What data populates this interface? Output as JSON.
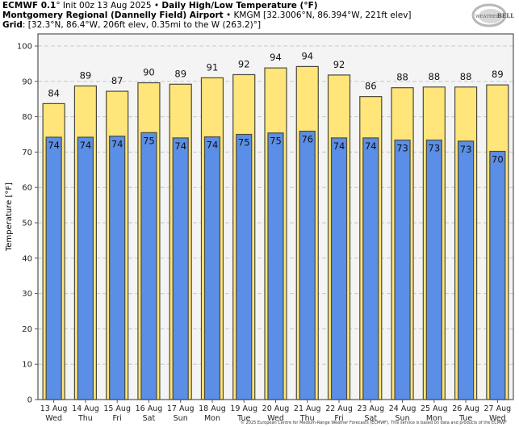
{
  "header": {
    "model": "ECMWF 0.1",
    "model_deg": "°",
    "init": " Init 00z 13 Aug 2025",
    "sep": " • ",
    "product": "Daily High/Low Temperature (°F)",
    "station": "Montgomery Regional (Dannelly Field) Airport",
    "station_info": "KMGM [32.3006°N, 86.394°W, 221ft elev]",
    "grid_label": "Grid",
    "grid_info": ": [32.3°N, 86.4°W, 206ft elev, 0.35mi to the W (263.2)°]"
  },
  "logo": {
    "text_left": "WEATHER",
    "text_right": "BELL",
    "icon": "weatherbell-logo-icon"
  },
  "footer": "© 2025 European Centre for Medium-Range Weather Forecasts (ECMWF). This service is based on data and products of the ECMWF",
  "colors": {
    "high": "#ffe57a",
    "low": "#5b8ee6",
    "outline": "#4a4a3a",
    "plot_bg": "#f4f4f4",
    "grid": "#c8c8c8"
  },
  "chart_data": {
    "type": "bar",
    "title": "Daily High/Low Temperature (°F)",
    "ylabel": "Temperature [°F]",
    "xlabel": "",
    "ylim": [
      0,
      105
    ],
    "yticks": [
      0,
      10,
      20,
      30,
      40,
      50,
      60,
      70,
      80,
      90,
      100
    ],
    "grid": true,
    "categories": [
      [
        "13 Aug",
        "Wed"
      ],
      [
        "14 Aug",
        "Thu"
      ],
      [
        "15 Aug",
        "Fri"
      ],
      [
        "16 Aug",
        "Sat"
      ],
      [
        "17 Aug",
        "Sun"
      ],
      [
        "18 Aug",
        "Mon"
      ],
      [
        "19 Aug",
        "Tue"
      ],
      [
        "20 Aug",
        "Wed"
      ],
      [
        "21 Aug",
        "Thu"
      ],
      [
        "22 Aug",
        "Fri"
      ],
      [
        "23 Aug",
        "Sat"
      ],
      [
        "24 Aug",
        "Sun"
      ],
      [
        "25 Aug",
        "Mon"
      ],
      [
        "26 Aug",
        "Tue"
      ],
      [
        "27 Aug",
        "Wed"
      ]
    ],
    "series": [
      {
        "name": "High",
        "values": [
          83.7,
          88.7,
          87.2,
          89.6,
          89.2,
          91.0,
          91.9,
          93.8,
          94.2,
          91.8,
          85.7,
          88.2,
          88.4,
          88.4,
          89.0
        ],
        "labels": [
          84,
          89,
          87,
          90,
          89,
          91,
          92,
          94,
          94,
          92,
          86,
          88,
          88,
          88,
          89
        ]
      },
      {
        "name": "Low",
        "values": [
          74.2,
          74.2,
          74.5,
          75.5,
          74.0,
          74.3,
          75.0,
          75.4,
          75.9,
          74.0,
          74.0,
          73.4,
          73.4,
          73.1,
          70.2
        ],
        "labels": [
          74,
          74,
          74,
          75,
          74,
          74,
          75,
          75,
          76,
          74,
          74,
          73,
          73,
          73,
          70
        ]
      }
    ]
  }
}
